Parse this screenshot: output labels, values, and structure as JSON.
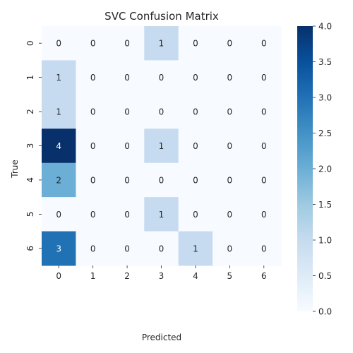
{
  "chart_data": {
    "type": "heatmap",
    "title": "SVC Confusion Matrix",
    "xlabel": "Predicted",
    "ylabel": "True",
    "x_categories": [
      "0",
      "1",
      "2",
      "3",
      "4",
      "5",
      "6"
    ],
    "y_categories": [
      "0",
      "1",
      "2",
      "3",
      "4",
      "5",
      "6"
    ],
    "values": [
      [
        0,
        0,
        0,
        1,
        0,
        0,
        0
      ],
      [
        1,
        0,
        0,
        0,
        0,
        0,
        0
      ],
      [
        1,
        0,
        0,
        0,
        0,
        0,
        0
      ],
      [
        4,
        0,
        0,
        1,
        0,
        0,
        0
      ],
      [
        2,
        0,
        0,
        0,
        0,
        0,
        0
      ],
      [
        0,
        0,
        0,
        1,
        0,
        0,
        0
      ],
      [
        3,
        0,
        0,
        0,
        1,
        0,
        0
      ]
    ],
    "colormap": "Blues",
    "colorbar": {
      "range": [
        0.0,
        4.0
      ],
      "ticks": [
        "0.0",
        "0.5",
        "1.0",
        "1.5",
        "2.0",
        "2.5",
        "3.0",
        "3.5",
        "4.0"
      ]
    },
    "colors": {
      "low": "#f7fbff",
      "high": "#08306b"
    }
  }
}
